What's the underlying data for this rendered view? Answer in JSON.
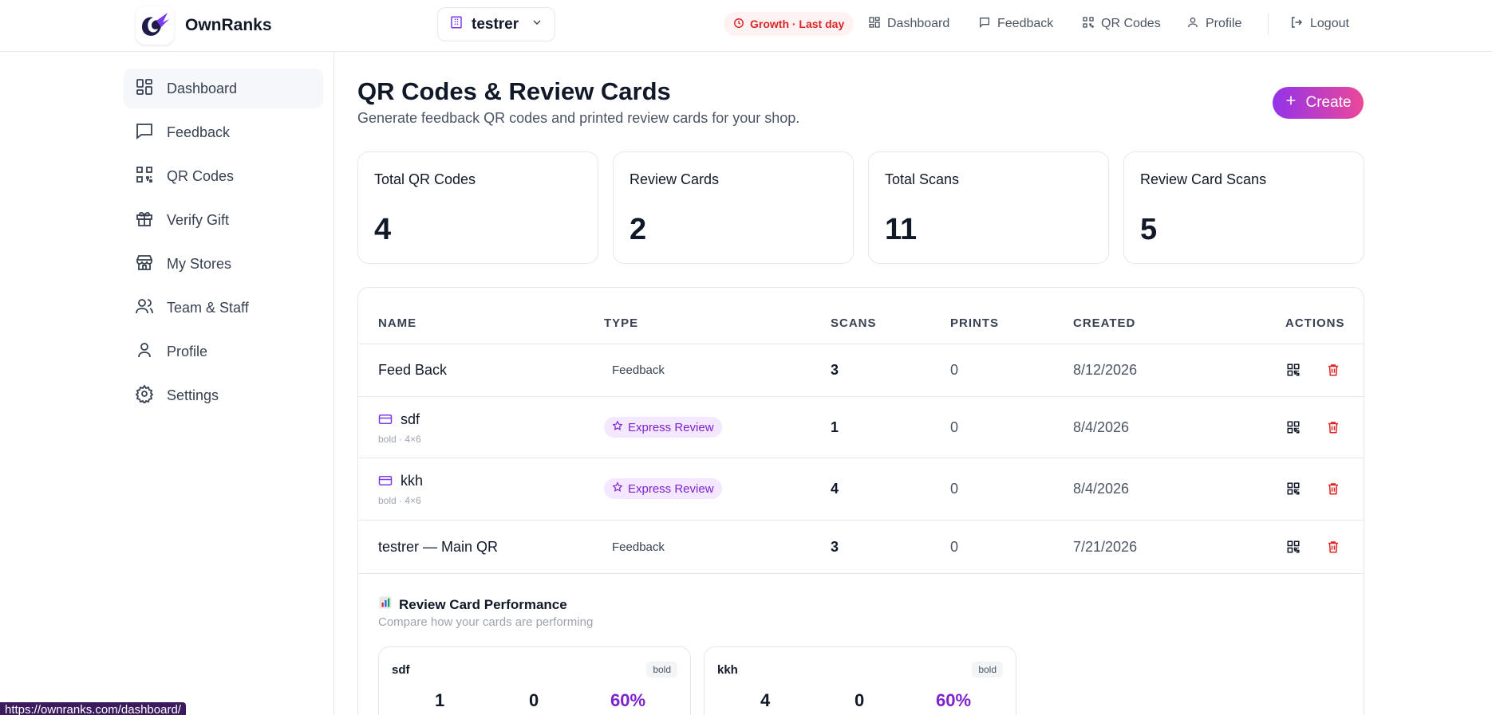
{
  "brand": {
    "name": "OwnRanks"
  },
  "store_selector": {
    "value": "testrer"
  },
  "plan_badge": {
    "label": "Growth · Last day"
  },
  "top_nav": [
    {
      "label": "Dashboard",
      "icon": "dashboard-icon"
    },
    {
      "label": "Feedback",
      "icon": "message-icon"
    },
    {
      "label": "QR Codes",
      "icon": "qr-icon"
    },
    {
      "label": "Profile",
      "icon": "user-icon"
    },
    {
      "label": "Logout",
      "icon": "logout-icon"
    }
  ],
  "sidebar": {
    "items": [
      {
        "label": "Dashboard",
        "icon": "dashboard-icon",
        "active": true
      },
      {
        "label": "Feedback",
        "icon": "message-icon"
      },
      {
        "label": "QR Codes",
        "icon": "qr-icon"
      },
      {
        "label": "Verify Gift",
        "icon": "gift-icon"
      },
      {
        "label": "My Stores",
        "icon": "store-icon"
      },
      {
        "label": "Team & Staff",
        "icon": "users-icon"
      },
      {
        "label": "Profile",
        "icon": "user-icon"
      },
      {
        "label": "Settings",
        "icon": "gear-icon"
      }
    ]
  },
  "main": {
    "title": "QR Codes & Review Cards",
    "subtitle": "Generate feedback QR codes and printed review cards for your shop.",
    "create_label": "Create",
    "stats": [
      {
        "label": "Total QR Codes",
        "value": "4"
      },
      {
        "label": "Review Cards",
        "value": "2"
      },
      {
        "label": "Total Scans",
        "value": "11"
      },
      {
        "label": "Review Card Scans",
        "value": "5"
      }
    ],
    "table": {
      "headers": {
        "name": "NAME",
        "type": "TYPE",
        "scans": "SCANS",
        "prints": "PRINTS",
        "created": "CREATED",
        "actions": "ACTIONS"
      },
      "rows": [
        {
          "name": "Feed Back",
          "meta": "",
          "card": false,
          "type": "Feedback",
          "express": false,
          "scans": "3",
          "prints": "0",
          "created": "8/12/2026"
        },
        {
          "name": "sdf",
          "meta": "bold · 4×6",
          "card": true,
          "type": "Express Review",
          "express": true,
          "scans": "1",
          "prints": "0",
          "created": "8/4/2026"
        },
        {
          "name": "kkh",
          "meta": "bold · 4×6",
          "card": true,
          "type": "Express Review",
          "express": true,
          "scans": "4",
          "prints": "0",
          "created": "8/4/2026"
        },
        {
          "name": "testrer — Main QR",
          "meta": "",
          "card": false,
          "type": "Feedback",
          "express": false,
          "scans": "3",
          "prints": "0",
          "created": "7/21/2026"
        }
      ]
    },
    "performance": {
      "title": "Review Card Performance",
      "subtitle": "Compare how your cards are performing",
      "cards": [
        {
          "name": "sdf",
          "tag": "bold",
          "scans": "1",
          "prints": "0",
          "rate": "60%"
        },
        {
          "name": "kkh",
          "tag": "bold",
          "scans": "4",
          "prints": "0",
          "rate": "60%"
        }
      ]
    }
  },
  "status_url": "https://ownranks.com/dashboard/",
  "colors": {
    "accent": "#7e22ce",
    "gradient_start": "#9333ea",
    "gradient_end": "#ec4899",
    "danger": "#dc2626"
  }
}
